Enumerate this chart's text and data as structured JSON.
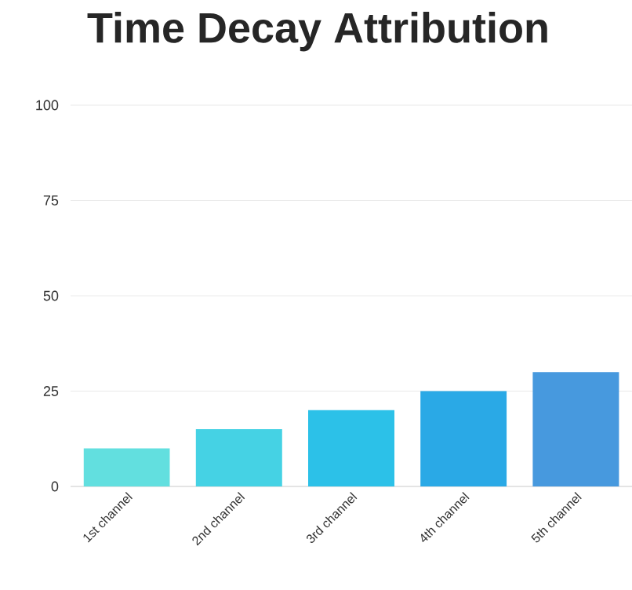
{
  "chart_data": {
    "type": "bar",
    "title": "Time Decay Attribution",
    "categories": [
      "1st channel",
      "2nd channel",
      "3rd channel",
      "4th channel",
      "5th channel"
    ],
    "values": [
      10,
      15,
      20,
      25,
      30
    ],
    "colors": [
      "#62dfdf",
      "#45d2e4",
      "#2cc1e8",
      "#2aa9e6",
      "#4799de"
    ],
    "ylim": [
      0,
      100
    ],
    "yticks": [
      0,
      25,
      50,
      75,
      100
    ],
    "grid": "y"
  }
}
